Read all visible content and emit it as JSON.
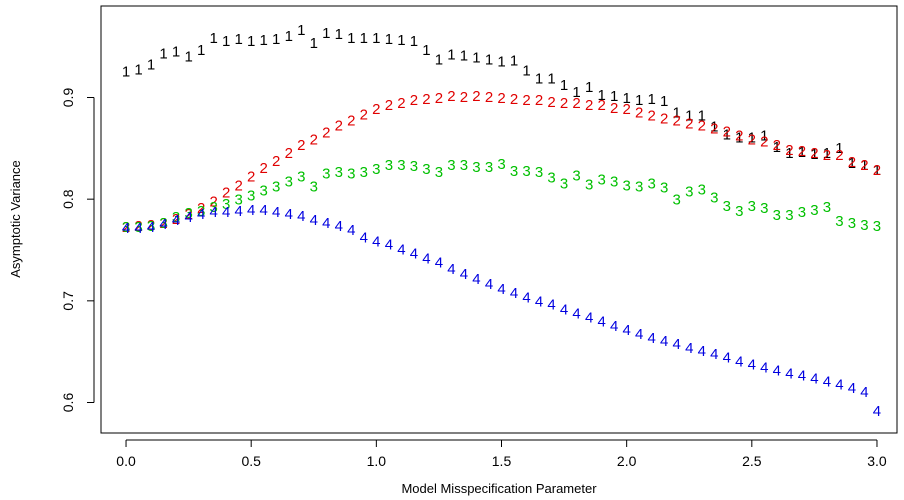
{
  "chart_data": {
    "type": "scatter",
    "xlabel": "Model Misspecification Parameter",
    "ylabel": "Asymptotic Variance",
    "xlim": [
      -0.1,
      3.08
    ],
    "ylim": [
      0.57,
      0.99
    ],
    "xticks": [
      "0.0",
      "0.5",
      "1.0",
      "1.5",
      "2.0",
      "2.5",
      "3.0"
    ],
    "yticks": [
      "0.6",
      "0.7",
      "0.8",
      "0.9"
    ],
    "grid": false,
    "legend": "none",
    "x": [
      0.0,
      0.05,
      0.1,
      0.15,
      0.2,
      0.25,
      0.3,
      0.35,
      0.4,
      0.45,
      0.5,
      0.55,
      0.6,
      0.65,
      0.7,
      0.75,
      0.8,
      0.85,
      0.9,
      0.95,
      1.0,
      1.05,
      1.1,
      1.15,
      1.2,
      1.25,
      1.3,
      1.35,
      1.4,
      1.45,
      1.5,
      1.55,
      1.6,
      1.65,
      1.7,
      1.75,
      1.8,
      1.85,
      1.9,
      1.95,
      2.0,
      2.05,
      2.1,
      2.15,
      2.2,
      2.25,
      2.3,
      2.35,
      2.4,
      2.45,
      2.5,
      2.55,
      2.6,
      2.65,
      2.7,
      2.75,
      2.8,
      2.85,
      2.9,
      2.95,
      3.0
    ],
    "series": [
      {
        "symbol": "1",
        "color": "#000000",
        "values": [
          0.925,
          0.927,
          0.932,
          0.943,
          0.945,
          0.94,
          0.946,
          0.958,
          0.955,
          0.957,
          0.955,
          0.956,
          0.957,
          0.96,
          0.966,
          0.953,
          0.963,
          0.962,
          0.958,
          0.958,
          0.958,
          0.957,
          0.956,
          0.955,
          0.946,
          0.937,
          0.942,
          0.941,
          0.939,
          0.937,
          0.935,
          0.936,
          0.926,
          0.918,
          0.918,
          0.912,
          0.905,
          0.91,
          0.902,
          0.901,
          0.899,
          0.897,
          0.898,
          0.896,
          0.885,
          0.882,
          0.882,
          0.871,
          0.863,
          0.86,
          0.86,
          0.862,
          0.851,
          0.845,
          0.846,
          0.844,
          0.845,
          0.85,
          0.835,
          0.833,
          0.828
        ]
      },
      {
        "symbol": "2",
        "color": "#e00000",
        "values": [
          0.772,
          0.773,
          0.774,
          0.776,
          0.78,
          0.785,
          0.791,
          0.797,
          0.806,
          0.813,
          0.822,
          0.83,
          0.837,
          0.845,
          0.853,
          0.858,
          0.865,
          0.872,
          0.877,
          0.883,
          0.888,
          0.892,
          0.894,
          0.897,
          0.898,
          0.899,
          0.901,
          0.9,
          0.901,
          0.9,
          0.899,
          0.898,
          0.897,
          0.897,
          0.895,
          0.894,
          0.894,
          0.892,
          0.892,
          0.889,
          0.888,
          0.885,
          0.882,
          0.879,
          0.877,
          0.874,
          0.872,
          0.869,
          0.866,
          0.862,
          0.858,
          0.856,
          0.853,
          0.848,
          0.847,
          0.845,
          0.843,
          0.843,
          0.836,
          0.833,
          0.828
        ]
      },
      {
        "symbol": "3",
        "color": "#00c000",
        "values": [
          0.772,
          0.772,
          0.773,
          0.776,
          0.782,
          0.786,
          0.788,
          0.792,
          0.795,
          0.799,
          0.803,
          0.808,
          0.812,
          0.817,
          0.822,
          0.812,
          0.825,
          0.826,
          0.825,
          0.826,
          0.829,
          0.833,
          0.833,
          0.832,
          0.829,
          0.826,
          0.833,
          0.833,
          0.831,
          0.831,
          0.834,
          0.827,
          0.827,
          0.826,
          0.821,
          0.815,
          0.823,
          0.814,
          0.819,
          0.817,
          0.813,
          0.812,
          0.815,
          0.811,
          0.799,
          0.807,
          0.809,
          0.801,
          0.793,
          0.788,
          0.793,
          0.791,
          0.784,
          0.784,
          0.787,
          0.789,
          0.792,
          0.778,
          0.776,
          0.774,
          0.773
        ]
      },
      {
        "symbol": "4",
        "color": "#0000e0",
        "values": [
          0.771,
          0.771,
          0.772,
          0.775,
          0.779,
          0.782,
          0.785,
          0.787,
          0.787,
          0.788,
          0.789,
          0.789,
          0.787,
          0.785,
          0.783,
          0.779,
          0.776,
          0.773,
          0.769,
          0.762,
          0.758,
          0.755,
          0.75,
          0.746,
          0.741,
          0.737,
          0.731,
          0.726,
          0.721,
          0.716,
          0.711,
          0.707,
          0.703,
          0.699,
          0.696,
          0.691,
          0.687,
          0.683,
          0.679,
          0.675,
          0.671,
          0.667,
          0.663,
          0.66,
          0.657,
          0.653,
          0.65,
          0.647,
          0.644,
          0.64,
          0.637,
          0.634,
          0.631,
          0.628,
          0.626,
          0.623,
          0.62,
          0.617,
          0.614,
          0.61,
          0.591
        ]
      }
    ]
  }
}
